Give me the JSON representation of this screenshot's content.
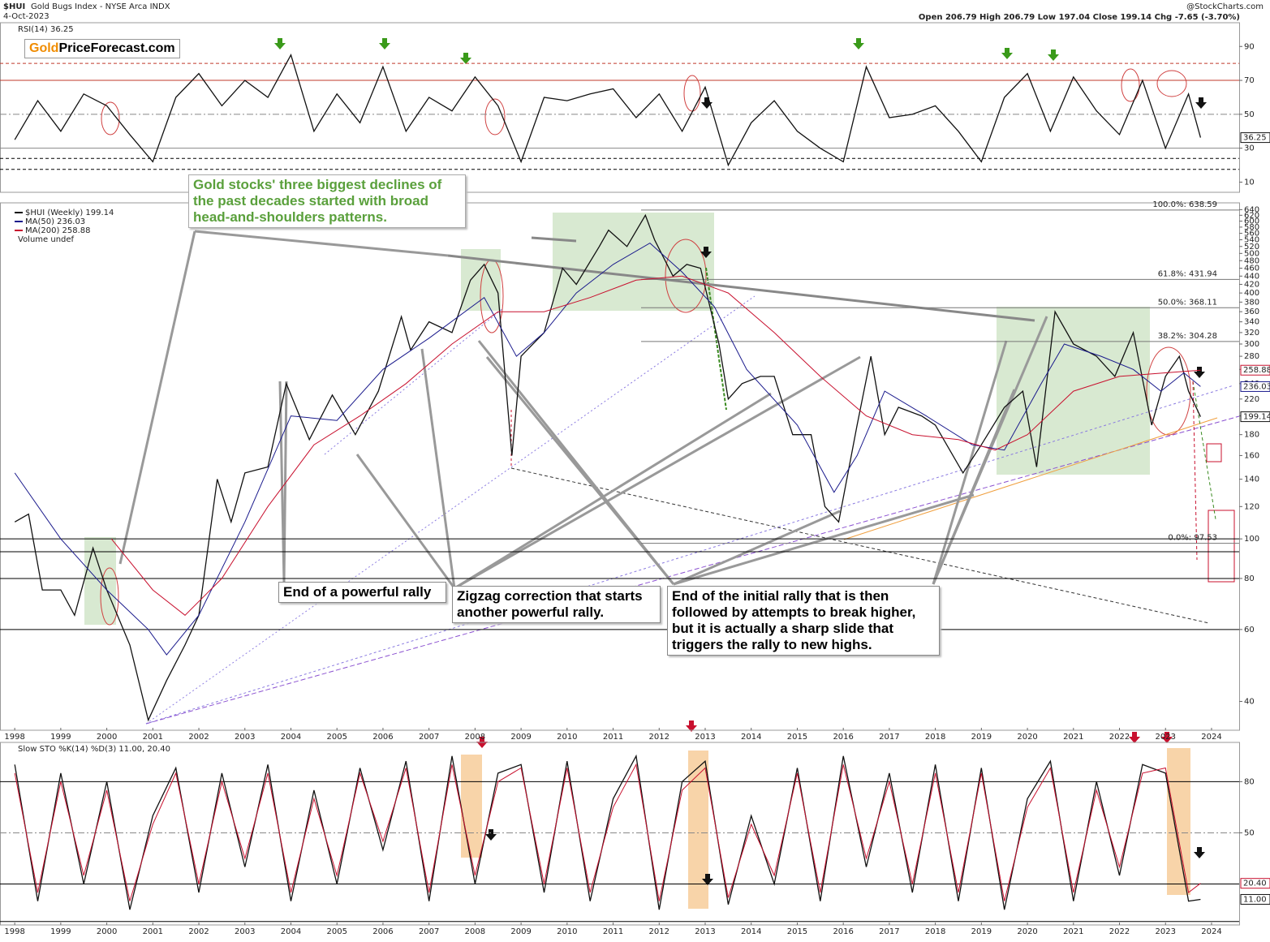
{
  "header": {
    "symbol": "$HUI",
    "name": "Gold Bugs Index - NYSE Arca INDX",
    "date": "4-Oct-2023",
    "source": "@StockCharts.com",
    "quote": "Open 206.79 High 206.79 Low 197.04 Close 199.14 Chg -7.65 (-3.70%)",
    "logo": [
      "Gold",
      "PriceForecast.com"
    ]
  },
  "annotations": [
    "Gold stocks' three biggest declines of the past decades started with broad head-and-shoulders patterns.",
    "End of a powerful rally",
    "Zigzag correction that starts another powerful rally.",
    "End of the initial rally that is then followed by attempts to break higher, but it is actually a sharp slide that triggers the rally to new highs."
  ],
  "chart_data": [
    {
      "type": "line",
      "title": "RSI(14) 36.25",
      "xlim": [
        1997.68,
        2024.6
      ],
      "ylim": [
        4,
        104
      ],
      "yticks": [
        10,
        30,
        50,
        70,
        90
      ],
      "levels": [
        {
          "value": 80,
          "color": "#c0392b",
          "dash": "4 3"
        },
        {
          "value": 70,
          "color": "#c0392b",
          "dash": ""
        },
        {
          "value": 50,
          "color": "#888",
          "dash": "8 3 2 3"
        },
        {
          "value": 30,
          "color": "#888",
          "dash": ""
        },
        {
          "value": 24,
          "color": "#000",
          "dash": "4 3"
        },
        {
          "value": 17.5,
          "color": "#000",
          "dash": "4 3"
        }
      ],
      "series": [
        {
          "name": "RSI(14)",
          "color": "#111",
          "x": [
            1998.0,
            1998.5,
            1999.0,
            1999.5,
            2000.0,
            2000.5,
            2001.0,
            2001.5,
            2002.0,
            2002.5,
            2003.0,
            2003.5,
            2004.0,
            2004.5,
            2005.0,
            2005.5,
            2006.0,
            2006.5,
            2007.0,
            2007.5,
            2008.0,
            2008.5,
            2009.0,
            2009.5,
            2010.0,
            2010.5,
            2011.0,
            2011.5,
            2012.0,
            2012.5,
            2013.0,
            2013.5,
            2014.0,
            2014.5,
            2015.0,
            2015.5,
            2016.0,
            2016.5,
            2017.0,
            2017.5,
            2018.0,
            2018.5,
            2019.0,
            2019.5,
            2020.0,
            2020.5,
            2021.0,
            2021.5,
            2022.0,
            2022.5,
            2023.0,
            2023.5,
            2023.76
          ],
          "values": [
            35,
            58,
            40,
            62,
            55,
            38,
            22,
            60,
            74,
            55,
            70,
            60,
            85,
            40,
            62,
            45,
            78,
            40,
            60,
            52,
            72,
            55,
            22,
            60,
            58,
            62,
            65,
            48,
            62,
            40,
            66,
            20,
            45,
            58,
            40,
            30,
            22,
            78,
            48,
            50,
            55,
            40,
            22,
            60,
            74,
            40,
            72,
            52,
            38,
            70,
            30,
            62,
            36.25
          ]
        }
      ]
    },
    {
      "type": "line",
      "log_scale": true,
      "xlim": [
        1997.68,
        2024.6
      ],
      "ylim": [
        34,
        665
      ],
      "xticks": [
        1998,
        1999,
        2000,
        2001,
        2002,
        2003,
        2004,
        2005,
        2006,
        2007,
        2008,
        2009,
        2010,
        2011,
        2012,
        2013,
        2014,
        2015,
        2016,
        2017,
        2018,
        2019,
        2020,
        2021,
        2022,
        2023,
        2024
      ],
      "yticks": [
        40,
        60,
        80,
        100,
        120,
        140,
        160,
        180,
        200,
        220,
        240,
        260,
        280,
        300,
        320,
        340,
        360,
        380,
        400,
        420,
        440,
        460,
        480,
        500,
        520,
        540,
        560,
        580,
        600,
        620,
        640
      ],
      "levels": [
        {
          "value": 100,
          "color": "#000",
          "dash": ""
        },
        {
          "value": 93,
          "color": "#000",
          "dash": ""
        },
        {
          "value": 80,
          "color": "#000",
          "dash": ""
        },
        {
          "value": 60,
          "color": "#000",
          "dash": ""
        }
      ],
      "fib_levels": [
        {
          "label": "100.0%: 638.59",
          "value": 638.59
        },
        {
          "label": "61.8%: 431.94",
          "value": 431.94
        },
        {
          "label": "50.0%: 368.11",
          "value": 368.11
        },
        {
          "label": "38.2%: 304.28",
          "value": 304.28
        },
        {
          "label": "0.0%: 97.53",
          "value": 97.53
        }
      ],
      "legend_extra": "Volume undef",
      "series": [
        {
          "name": "$HUI (Weekly) 199.14",
          "color": "#111",
          "x": [
            1998.0,
            1998.3,
            1998.6,
            1999.0,
            1999.3,
            1999.7,
            2000.0,
            2000.5,
            2000.9,
            2001.3,
            2001.7,
            2002.0,
            2002.4,
            2002.7,
            2003.0,
            2003.5,
            2003.9,
            2004.4,
            2004.9,
            2005.4,
            2005.9,
            2006.4,
            2006.6,
            2007.0,
            2007.5,
            2007.9,
            2008.2,
            2008.5,
            2008.8,
            2009.0,
            2009.5,
            2009.9,
            2010.2,
            2010.7,
            2010.9,
            2011.3,
            2011.7,
            2011.9,
            2012.3,
            2012.6,
            2012.9,
            2013.3,
            2013.5,
            2013.8,
            2014.2,
            2014.5,
            2014.9,
            2015.3,
            2015.6,
            2015.9,
            2016.3,
            2016.6,
            2016.9,
            2017.2,
            2017.7,
            2018.0,
            2018.6,
            2019.0,
            2019.5,
            2019.9,
            2020.2,
            2020.6,
            2021.0,
            2021.5,
            2021.9,
            2022.3,
            2022.7,
            2023.0,
            2023.3,
            2023.5,
            2023.76
          ],
          "values": [
            110,
            115,
            75,
            75,
            65,
            95,
            75,
            55,
            36,
            45,
            55,
            65,
            140,
            110,
            145,
            150,
            240,
            175,
            225,
            180,
            230,
            350,
            290,
            340,
            320,
            430,
            470,
            400,
            160,
            280,
            320,
            460,
            420,
            520,
            570,
            520,
            620,
            540,
            440,
            470,
            460,
            300,
            220,
            240,
            250,
            250,
            180,
            180,
            120,
            110,
            190,
            280,
            180,
            210,
            200,
            190,
            145,
            170,
            210,
            230,
            150,
            360,
            300,
            280,
            250,
            320,
            190,
            250,
            280,
            230,
            199.14
          ]
        },
        {
          "name": "MA(50) 236.03",
          "color": "#1a1a8c",
          "x": [
            1998.0,
            1999.0,
            2000.0,
            2000.9,
            2001.3,
            2002.0,
            2003.0,
            2004.0,
            2005.0,
            2006.0,
            2007.0,
            2008.2,
            2008.9,
            2009.5,
            2010.2,
            2011.0,
            2011.8,
            2012.5,
            2013.2,
            2013.9,
            2015.0,
            2015.8,
            2016.3,
            2016.9,
            2017.8,
            2018.8,
            2019.5,
            2020.3,
            2020.8,
            2021.6,
            2022.3,
            2022.9,
            2023.4,
            2023.76
          ],
          "values": [
            145,
            100,
            75,
            60,
            52,
            65,
            110,
            200,
            195,
            260,
            310,
            390,
            280,
            320,
            400,
            470,
            530,
            450,
            370,
            260,
            190,
            130,
            160,
            230,
            200,
            170,
            165,
            240,
            300,
            280,
            260,
            230,
            255,
            236.03
          ]
        },
        {
          "name": "MA(200) 258.88",
          "color": "#c8102e",
          "x": [
            2000.1,
            2001.0,
            2001.7,
            2002.5,
            2003.5,
            2004.5,
            2005.5,
            2006.5,
            2007.5,
            2008.5,
            2009.5,
            2010.5,
            2011.5,
            2012.5,
            2013.5,
            2014.5,
            2015.5,
            2016.5,
            2017.5,
            2018.5,
            2019.3,
            2020.0,
            2021.0,
            2022.0,
            2023.0,
            2023.76
          ],
          "values": [
            100,
            75,
            65,
            80,
            120,
            170,
            200,
            240,
            300,
            360,
            360,
            390,
            430,
            440,
            400,
            320,
            250,
            200,
            180,
            175,
            165,
            180,
            230,
            250,
            255,
            258.88
          ]
        }
      ]
    },
    {
      "type": "line",
      "title": "Slow STO %K(14) %D(3) 11.00, 20.40",
      "xlim": [
        1997.68,
        2024.6
      ],
      "ylim": [
        -4,
        103
      ],
      "xticks": [
        1998,
        1999,
        2000,
        2001,
        2002,
        2003,
        2004,
        2005,
        2006,
        2007,
        2008,
        2009,
        2010,
        2011,
        2012,
        2013,
        2014,
        2015,
        2016,
        2017,
        2018,
        2019,
        2020,
        2021,
        2022,
        2023,
        2024
      ],
      "yticks": [
        50,
        80
      ],
      "levels": [
        {
          "value": 80,
          "color": "#000",
          "dash": ""
        },
        {
          "value": 50,
          "color": "#888",
          "dash": "8 3 2 3"
        },
        {
          "value": 20,
          "color": "#000",
          "dash": ""
        },
        {
          "value": -2,
          "color": "#000",
          "dash": ""
        }
      ],
      "series": [
        {
          "name": "%K(14)",
          "color": "#111",
          "last_label": "11.00",
          "x": [
            1998.0,
            1998.5,
            1999.0,
            1999.5,
            2000.0,
            2000.5,
            2001.0,
            2001.5,
            2002.0,
            2002.5,
            2003.0,
            2003.5,
            2004.0,
            2004.5,
            2005.0,
            2005.5,
            2006.0,
            2006.5,
            2007.0,
            2007.5,
            2008.0,
            2008.5,
            2009.0,
            2009.5,
            2010.0,
            2010.5,
            2011.0,
            2011.5,
            2012.0,
            2012.5,
            2013.0,
            2013.5,
            2014.0,
            2014.5,
            2015.0,
            2015.5,
            2016.0,
            2016.5,
            2017.0,
            2017.5,
            2018.0,
            2018.5,
            2019.0,
            2019.5,
            2020.0,
            2020.5,
            2021.0,
            2021.5,
            2022.0,
            2022.5,
            2023.0,
            2023.5,
            2023.76
          ],
          "values": [
            90,
            10,
            85,
            20,
            80,
            5,
            60,
            88,
            15,
            85,
            30,
            90,
            10,
            75,
            20,
            88,
            40,
            92,
            10,
            95,
            20,
            85,
            90,
            15,
            92,
            10,
            70,
            95,
            5,
            80,
            92,
            8,
            60,
            20,
            88,
            10,
            95,
            30,
            85,
            15,
            90,
            10,
            88,
            5,
            70,
            92,
            10,
            80,
            25,
            90,
            85,
            10,
            11.0
          ]
        },
        {
          "name": "%D(3)",
          "color": "#c8102e",
          "last_label": "20.40",
          "x": [
            1998.0,
            1998.5,
            1999.0,
            1999.5,
            2000.0,
            2000.5,
            2001.0,
            2001.5,
            2002.0,
            2002.5,
            2003.0,
            2003.5,
            2004.0,
            2004.5,
            2005.0,
            2005.5,
            2006.0,
            2006.5,
            2007.0,
            2007.5,
            2008.0,
            2008.5,
            2009.0,
            2009.5,
            2010.0,
            2010.5,
            2011.0,
            2011.5,
            2012.0,
            2012.5,
            2013.0,
            2013.5,
            2014.0,
            2014.5,
            2015.0,
            2015.5,
            2016.0,
            2016.5,
            2017.0,
            2017.5,
            2018.0,
            2018.5,
            2019.0,
            2019.5,
            2020.0,
            2020.5,
            2021.0,
            2021.5,
            2022.0,
            2022.5,
            2023.0,
            2023.5,
            2023.76
          ],
          "values": [
            85,
            15,
            80,
            25,
            75,
            10,
            55,
            85,
            20,
            80,
            35,
            85,
            15,
            70,
            25,
            85,
            45,
            88,
            15,
            90,
            25,
            80,
            88,
            20,
            88,
            15,
            65,
            90,
            10,
            75,
            88,
            12,
            55,
            25,
            85,
            15,
            90,
            35,
            80,
            20,
            85,
            15,
            85,
            10,
            65,
            88,
            15,
            75,
            30,
            85,
            88,
            15,
            20.4
          ]
        }
      ]
    }
  ]
}
